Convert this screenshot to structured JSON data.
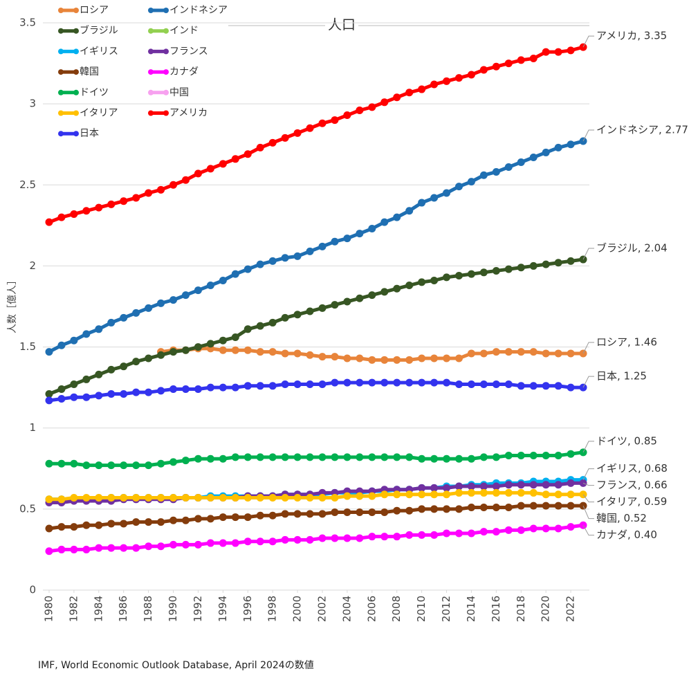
{
  "chart_data": {
    "type": "line",
    "title": "人口",
    "y_label": "人数［億人］",
    "source": "IMF, World Economic Outlook Database, April 2024の数値",
    "x": [
      1980,
      1981,
      1982,
      1983,
      1984,
      1985,
      1986,
      1987,
      1988,
      1989,
      1990,
      1991,
      1992,
      1993,
      1994,
      1995,
      1996,
      1997,
      1998,
      1999,
      2000,
      2001,
      2002,
      2003,
      2004,
      2005,
      2006,
      2007,
      2008,
      2009,
      2010,
      2011,
      2012,
      2013,
      2014,
      2015,
      2016,
      2017,
      2018,
      2019,
      2020,
      2021,
      2022,
      2023
    ],
    "xlim": [
      1979.5,
      2023.5
    ],
    "xticks": [
      1980,
      1982,
      1984,
      1986,
      1988,
      1990,
      1992,
      1994,
      1996,
      1998,
      2000,
      2002,
      2004,
      2006,
      2008,
      2010,
      2012,
      2014,
      2016,
      2018,
      2020,
      2022
    ],
    "ylim": [
      0,
      3.5
    ],
    "yticks": [
      0,
      0.5,
      1,
      1.5,
      2,
      2.5,
      3,
      3.5
    ],
    "grid": true,
    "legend": "top-left",
    "series": [
      {
        "name": "ロシア",
        "color": "#e8843a",
        "values": [
          null,
          null,
          null,
          null,
          null,
          null,
          null,
          null,
          null,
          1.47,
          1.48,
          1.48,
          1.49,
          1.49,
          1.48,
          1.48,
          1.48,
          1.47,
          1.47,
          1.46,
          1.46,
          1.45,
          1.44,
          1.44,
          1.43,
          1.43,
          1.42,
          1.42,
          1.42,
          1.42,
          1.43,
          1.43,
          1.43,
          1.43,
          1.46,
          1.46,
          1.47,
          1.47,
          1.47,
          1.47,
          1.46,
          1.46,
          1.46,
          1.46
        ],
        "value_labels": [
          null,
          null,
          null,
          null,
          null,
          null,
          null,
          null,
          null,
          null,
          null,
          null,
          null,
          null,
          null,
          null,
          null,
          null,
          null,
          null,
          null,
          null,
          null,
          null,
          null,
          null,
          null,
          null,
          null,
          null,
          null,
          null,
          null,
          null,
          null,
          null,
          null,
          null,
          null,
          null,
          null,
          null,
          null,
          "ロシア, 1.46"
        ]
      },
      {
        "name": "インドネシア",
        "color": "#1f6fb2",
        "values": [
          1.47,
          1.51,
          1.54,
          1.58,
          1.61,
          1.65,
          1.68,
          1.71,
          1.74,
          1.77,
          1.79,
          1.82,
          1.85,
          1.88,
          1.91,
          1.95,
          1.98,
          2.01,
          2.03,
          2.05,
          2.06,
          2.09,
          2.12,
          2.15,
          2.17,
          2.2,
          2.23,
          2.27,
          2.3,
          2.34,
          2.39,
          2.42,
          2.45,
          2.49,
          2.52,
          2.56,
          2.58,
          2.61,
          2.64,
          2.67,
          2.7,
          2.73,
          2.75,
          2.77
        ],
        "value_labels": [
          null,
          null,
          null,
          null,
          null,
          null,
          null,
          null,
          null,
          null,
          null,
          null,
          null,
          null,
          null,
          null,
          null,
          null,
          null,
          null,
          null,
          null,
          null,
          null,
          null,
          null,
          null,
          null,
          null,
          null,
          null,
          null,
          null,
          null,
          null,
          null,
          null,
          null,
          null,
          null,
          null,
          null,
          null,
          "インドネシア, 2.77"
        ]
      },
      {
        "name": "ブラジル",
        "color": "#375623",
        "values": [
          1.21,
          1.24,
          1.27,
          1.3,
          1.33,
          1.36,
          1.38,
          1.41,
          1.43,
          1.45,
          1.47,
          1.48,
          1.5,
          1.52,
          1.54,
          1.56,
          1.61,
          1.63,
          1.65,
          1.68,
          1.7,
          1.72,
          1.74,
          1.76,
          1.78,
          1.8,
          1.82,
          1.84,
          1.86,
          1.88,
          1.9,
          1.91,
          1.93,
          1.94,
          1.95,
          1.96,
          1.97,
          1.98,
          1.99,
          2.0,
          2.01,
          2.02,
          2.03,
          2.04
        ],
        "value_labels": [
          null,
          null,
          null,
          null,
          null,
          null,
          null,
          null,
          null,
          null,
          null,
          null,
          null,
          null,
          null,
          null,
          null,
          null,
          null,
          null,
          null,
          null,
          null,
          null,
          null,
          null,
          null,
          null,
          null,
          null,
          null,
          null,
          null,
          null,
          null,
          null,
          null,
          null,
          null,
          null,
          null,
          null,
          null,
          "ブラジル, 2.04"
        ]
      },
      {
        "name": "インド",
        "color": "#92d050"
      },
      {
        "name": "イギリス",
        "color": "#00b0f0",
        "values": [
          0.56,
          0.56,
          0.56,
          0.56,
          0.56,
          0.57,
          0.57,
          0.57,
          0.57,
          0.57,
          0.57,
          0.57,
          0.57,
          0.58,
          0.58,
          0.58,
          0.58,
          0.58,
          0.58,
          0.59,
          0.59,
          0.59,
          0.59,
          0.6,
          0.6,
          0.6,
          0.61,
          0.61,
          0.62,
          0.62,
          0.63,
          0.63,
          0.64,
          0.64,
          0.65,
          0.65,
          0.66,
          0.66,
          0.66,
          0.67,
          0.67,
          0.67,
          0.68,
          0.68
        ],
        "value_labels": [
          null,
          null,
          null,
          null,
          null,
          null,
          null,
          null,
          null,
          null,
          null,
          null,
          null,
          null,
          null,
          null,
          null,
          null,
          null,
          null,
          null,
          null,
          null,
          null,
          null,
          null,
          null,
          null,
          null,
          null,
          null,
          null,
          null,
          null,
          null,
          null,
          null,
          null,
          null,
          null,
          null,
          null,
          null,
          "イギリス, 0.68"
        ]
      },
      {
        "name": "フランス",
        "color": "#7030a0",
        "values": [
          0.54,
          0.54,
          0.55,
          0.55,
          0.55,
          0.55,
          0.56,
          0.56,
          0.56,
          0.56,
          0.56,
          0.57,
          0.57,
          0.57,
          0.57,
          0.57,
          0.58,
          0.58,
          0.58,
          0.59,
          0.59,
          0.59,
          0.6,
          0.6,
          0.61,
          0.61,
          0.61,
          0.62,
          0.62,
          0.62,
          0.63,
          0.63,
          0.63,
          0.64,
          0.64,
          0.64,
          0.64,
          0.65,
          0.65,
          0.65,
          0.65,
          0.65,
          0.66,
          0.66
        ],
        "value_labels": [
          null,
          null,
          null,
          null,
          null,
          null,
          null,
          null,
          null,
          null,
          null,
          null,
          null,
          null,
          null,
          null,
          null,
          null,
          null,
          null,
          null,
          null,
          null,
          null,
          null,
          null,
          null,
          null,
          null,
          null,
          null,
          null,
          null,
          null,
          null,
          null,
          null,
          null,
          null,
          null,
          null,
          null,
          null,
          "フランス, 0.66"
        ]
      },
      {
        "name": "韓国",
        "color": "#843c0c",
        "values": [
          0.38,
          0.39,
          0.39,
          0.4,
          0.4,
          0.41,
          0.41,
          0.42,
          0.42,
          0.42,
          0.43,
          0.43,
          0.44,
          0.44,
          0.45,
          0.45,
          0.45,
          0.46,
          0.46,
          0.47,
          0.47,
          0.47,
          0.47,
          0.48,
          0.48,
          0.48,
          0.48,
          0.48,
          0.49,
          0.49,
          0.5,
          0.5,
          0.5,
          0.5,
          0.51,
          0.51,
          0.51,
          0.51,
          0.52,
          0.52,
          0.52,
          0.52,
          0.52,
          0.52
        ],
        "value_labels": [
          null,
          null,
          null,
          null,
          null,
          null,
          null,
          null,
          null,
          null,
          null,
          null,
          null,
          null,
          null,
          null,
          null,
          null,
          null,
          null,
          null,
          null,
          null,
          null,
          null,
          null,
          null,
          null,
          null,
          null,
          null,
          null,
          null,
          null,
          null,
          null,
          null,
          null,
          null,
          null,
          null,
          null,
          null,
          "韓国, 0.52"
        ]
      },
      {
        "name": "カナダ",
        "color": "#ff00ff",
        "values": [
          0.24,
          0.25,
          0.25,
          0.25,
          0.26,
          0.26,
          0.26,
          0.26,
          0.27,
          0.27,
          0.28,
          0.28,
          0.28,
          0.29,
          0.29,
          0.29,
          0.3,
          0.3,
          0.3,
          0.31,
          0.31,
          0.31,
          0.32,
          0.32,
          0.32,
          0.32,
          0.33,
          0.33,
          0.33,
          0.34,
          0.34,
          0.34,
          0.35,
          0.35,
          0.35,
          0.36,
          0.36,
          0.37,
          0.37,
          0.38,
          0.38,
          0.38,
          0.39,
          0.4
        ],
        "value_labels": [
          null,
          null,
          null,
          null,
          null,
          null,
          null,
          null,
          null,
          null,
          null,
          null,
          null,
          null,
          null,
          null,
          null,
          null,
          null,
          null,
          null,
          null,
          null,
          null,
          null,
          null,
          null,
          null,
          null,
          null,
          null,
          null,
          null,
          null,
          null,
          null,
          null,
          null,
          null,
          null,
          null,
          null,
          null,
          "カナダ, 0.40"
        ]
      },
      {
        "name": "ドイツ",
        "color": "#00b050",
        "values": [
          0.78,
          0.78,
          0.78,
          0.77,
          0.77,
          0.77,
          0.77,
          0.77,
          0.77,
          0.78,
          0.79,
          0.8,
          0.81,
          0.81,
          0.81,
          0.82,
          0.82,
          0.82,
          0.82,
          0.82,
          0.82,
          0.82,
          0.82,
          0.82,
          0.82,
          0.82,
          0.82,
          0.82,
          0.82,
          0.82,
          0.81,
          0.81,
          0.81,
          0.81,
          0.81,
          0.82,
          0.82,
          0.83,
          0.83,
          0.83,
          0.83,
          0.83,
          0.84,
          0.85
        ],
        "value_labels": [
          null,
          null,
          null,
          null,
          null,
          null,
          null,
          null,
          null,
          null,
          null,
          null,
          null,
          null,
          null,
          null,
          null,
          null,
          null,
          null,
          null,
          null,
          null,
          null,
          null,
          null,
          null,
          null,
          null,
          null,
          null,
          null,
          null,
          null,
          null,
          null,
          null,
          null,
          null,
          null,
          null,
          null,
          null,
          "ドイツ, 0.85"
        ]
      },
      {
        "name": "中国",
        "color": "#f7a1ef"
      },
      {
        "name": "イタリア",
        "color": "#ffc000",
        "values": [
          0.56,
          0.56,
          0.57,
          0.57,
          0.57,
          0.57,
          0.57,
          0.57,
          0.57,
          0.57,
          0.57,
          0.57,
          0.57,
          0.57,
          0.57,
          0.57,
          0.57,
          0.57,
          0.57,
          0.57,
          0.57,
          0.57,
          0.57,
          0.57,
          0.58,
          0.58,
          0.58,
          0.59,
          0.59,
          0.59,
          0.59,
          0.59,
          0.59,
          0.6,
          0.6,
          0.6,
          0.6,
          0.6,
          0.6,
          0.6,
          0.59,
          0.59,
          0.59,
          0.59
        ],
        "value_labels": [
          null,
          null,
          null,
          null,
          null,
          null,
          null,
          null,
          null,
          null,
          null,
          null,
          null,
          null,
          null,
          null,
          null,
          null,
          null,
          null,
          null,
          null,
          null,
          null,
          null,
          null,
          null,
          null,
          null,
          null,
          null,
          null,
          null,
          null,
          null,
          null,
          null,
          null,
          null,
          null,
          null,
          null,
          null,
          "イタリア, 0.59"
        ]
      },
      {
        "name": "アメリカ",
        "color": "#ff0000",
        "values": [
          2.27,
          2.3,
          2.32,
          2.34,
          2.36,
          2.38,
          2.4,
          2.42,
          2.45,
          2.47,
          2.5,
          2.53,
          2.57,
          2.6,
          2.63,
          2.66,
          2.69,
          2.73,
          2.76,
          2.79,
          2.82,
          2.85,
          2.88,
          2.9,
          2.93,
          2.96,
          2.98,
          3.01,
          3.04,
          3.07,
          3.09,
          3.12,
          3.14,
          3.16,
          3.18,
          3.21,
          3.23,
          3.25,
          3.27,
          3.28,
          3.32,
          3.32,
          3.33,
          3.35
        ],
        "value_labels": [
          null,
          null,
          null,
          null,
          null,
          null,
          null,
          null,
          null,
          null,
          null,
          null,
          null,
          null,
          null,
          null,
          null,
          null,
          null,
          null,
          null,
          null,
          null,
          null,
          null,
          null,
          null,
          null,
          null,
          null,
          null,
          null,
          null,
          null,
          null,
          null,
          null,
          null,
          null,
          null,
          null,
          null,
          null,
          "アメリカ, 3.35"
        ]
      },
      {
        "name": "日本",
        "color": "#3333ee",
        "values": [
          1.17,
          1.18,
          1.19,
          1.19,
          1.2,
          1.21,
          1.21,
          1.22,
          1.22,
          1.23,
          1.24,
          1.24,
          1.24,
          1.25,
          1.25,
          1.25,
          1.26,
          1.26,
          1.26,
          1.27,
          1.27,
          1.27,
          1.27,
          1.28,
          1.28,
          1.28,
          1.28,
          1.28,
          1.28,
          1.28,
          1.28,
          1.28,
          1.28,
          1.27,
          1.27,
          1.27,
          1.27,
          1.27,
          1.26,
          1.26,
          1.26,
          1.26,
          1.25,
          1.25
        ],
        "value_labels": [
          null,
          null,
          null,
          null,
          null,
          null,
          null,
          null,
          null,
          null,
          null,
          null,
          null,
          null,
          null,
          null,
          null,
          null,
          null,
          null,
          null,
          null,
          null,
          null,
          null,
          null,
          null,
          null,
          null,
          null,
          null,
          null,
          null,
          null,
          null,
          null,
          null,
          null,
          null,
          null,
          null,
          null,
          null,
          "日本, 1.25"
        ]
      }
    ]
  }
}
